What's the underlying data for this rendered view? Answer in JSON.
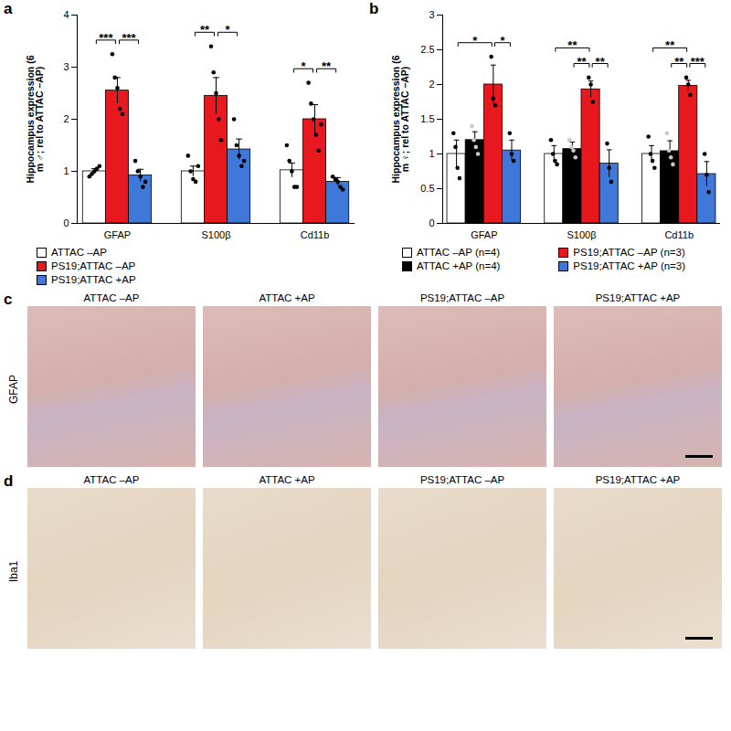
{
  "chart_data": [
    {
      "type": "bar",
      "panel": "a",
      "ylabel": "Hippocampus expression (6 m ♂; rel to ATTAC –AP)",
      "categories": [
        "GFAP",
        "S100β",
        "Cd11b"
      ],
      "series": [
        {
          "name": "ATTAC –AP",
          "color": "#ffffff",
          "values": [
            1.0,
            1.0,
            1.02
          ],
          "errors": [
            0.05,
            0.1,
            0.14
          ],
          "points": [
            [
              0.9,
              0.95,
              1.0,
              1.05,
              1.1
            ],
            [
              1.3,
              1.0,
              0.85,
              0.8,
              1.1
            ],
            [
              1.5,
              1.2,
              1.0,
              0.7,
              0.7
            ]
          ]
        },
        {
          "name": "PS19;ATTAC –AP",
          "color": "#e8191e",
          "values": [
            2.55,
            2.45,
            2.0
          ],
          "errors": [
            0.25,
            0.35,
            0.28
          ],
          "points": [
            [
              3.25,
              2.8,
              2.6,
              2.2,
              2.1
            ],
            [
              3.4,
              2.9,
              2.5,
              2.0,
              1.6
            ],
            [
              2.7,
              2.3,
              2.0,
              1.7,
              1.4,
              1.9
            ]
          ]
        },
        {
          "name": "PS19;ATTAC +AP",
          "color": "#3f78d8",
          "values": [
            0.92,
            1.42,
            0.8
          ],
          "errors": [
            0.12,
            0.2,
            0.08
          ],
          "points": [
            [
              1.2,
              1.0,
              0.9,
              0.7,
              0.8
            ],
            [
              2.0,
              1.5,
              1.3,
              1.1,
              1.2
            ],
            [
              0.9,
              0.85,
              0.8,
              0.7,
              0.65
            ]
          ]
        }
      ],
      "significance": [
        {
          "category": "GFAP",
          "pair": [
            "ATTAC –AP",
            "PS19;ATTAC –AP"
          ],
          "label": "***"
        },
        {
          "category": "GFAP",
          "pair": [
            "PS19;ATTAC –AP",
            "PS19;ATTAC +AP"
          ],
          "label": "***"
        },
        {
          "category": "S100β",
          "pair": [
            "ATTAC –AP",
            "PS19;ATTAC –AP"
          ],
          "label": "**"
        },
        {
          "category": "S100β",
          "pair": [
            "PS19;ATTAC –AP",
            "PS19;ATTAC +AP"
          ],
          "label": "*"
        },
        {
          "category": "Cd11b",
          "pair": [
            "ATTAC –AP",
            "PS19;ATTAC –AP"
          ],
          "label": "*"
        },
        {
          "category": "Cd11b",
          "pair": [
            "PS19;ATTAC –AP",
            "PS19;ATTAC +AP"
          ],
          "label": "**"
        }
      ],
      "ylim": [
        0,
        4
      ],
      "yticks": [
        0,
        1,
        2,
        3,
        4
      ],
      "grid": false
    },
    {
      "type": "bar",
      "panel": "b",
      "ylabel": "Hippocampus expression (6 m ♀; rel to ATTAC –AP)",
      "categories": [
        "GFAP",
        "S100β",
        "Cd11b"
      ],
      "series": [
        {
          "name": "ATTAC –AP (n=4)",
          "color": "#ffffff",
          "values": [
            1.0,
            1.0,
            1.0
          ],
          "errors": [
            0.2,
            0.12,
            0.12
          ],
          "points": [
            [
              1.3,
              1.1,
              0.8,
              0.65
            ],
            [
              1.2,
              1.0,
              0.9,
              0.85
            ],
            [
              1.25,
              1.0,
              0.9,
              0.8
            ]
          ]
        },
        {
          "name": "ATTAC +AP (n=4)",
          "color": "#000000",
          "values": [
            1.2,
            1.07,
            1.04
          ],
          "errors": [
            0.12,
            0.1,
            0.15
          ],
          "points": [
            [
              1.4,
              1.2,
              1.1,
              1.0
            ],
            [
              1.2,
              1.1,
              1.05,
              0.95
            ],
            [
              1.3,
              1.05,
              0.95,
              0.85
            ]
          ]
        },
        {
          "name": "PS19;ATTAC –AP (n=3)",
          "color": "#e8191e",
          "values": [
            2.0,
            1.93,
            1.98
          ],
          "errors": [
            0.28,
            0.12,
            0.08
          ],
          "points": [
            [
              2.4,
              1.8,
              1.7
            ],
            [
              2.1,
              2.0,
              1.75
            ],
            [
              2.1,
              2.0,
              1.85
            ]
          ]
        },
        {
          "name": "PS19;ATTAC +AP (n=3)",
          "color": "#3f78d8",
          "values": [
            1.05,
            0.86,
            0.71
          ],
          "errors": [
            0.15,
            0.2,
            0.18
          ],
          "points": [
            [
              1.3,
              1.0,
              0.9
            ],
            [
              1.15,
              0.8,
              0.6
            ],
            [
              1.0,
              0.7,
              0.45
            ]
          ]
        }
      ],
      "significance": [
        {
          "category": "GFAP",
          "pair": [
            "ATTAC –AP (n=4)",
            "PS19;ATTAC –AP (n=3)"
          ],
          "label": "*"
        },
        {
          "category": "GFAP",
          "pair": [
            "PS19;ATTAC –AP (n=3)",
            "PS19;ATTAC +AP (n=3)"
          ],
          "label": "*"
        },
        {
          "category": "S100β",
          "pair": [
            "ATTAC –AP (n=4)",
            "PS19;ATTAC –AP (n=3)"
          ],
          "label": "**"
        },
        {
          "category": "S100β",
          "pair": [
            "ATTAC +AP (n=4)",
            "PS19;ATTAC –AP (n=3)"
          ],
          "label": "**"
        },
        {
          "category": "S100β",
          "pair": [
            "PS19;ATTAC –AP (n=3)",
            "PS19;ATTAC +AP (n=3)"
          ],
          "label": "**"
        },
        {
          "category": "Cd11b",
          "pair": [
            "ATTAC –AP (n=4)",
            "PS19;ATTAC –AP (n=3)"
          ],
          "label": "**"
        },
        {
          "category": "Cd11b",
          "pair": [
            "ATTAC +AP (n=4)",
            "PS19;ATTAC –AP (n=3)"
          ],
          "label": "**"
        },
        {
          "category": "Cd11b",
          "pair": [
            "PS19;ATTAC –AP (n=3)",
            "PS19;ATTAC +AP (n=3)"
          ],
          "label": "***"
        }
      ],
      "ylim": [
        0,
        3
      ],
      "yticks": [
        0,
        0.5,
        1,
        1.5,
        2,
        2.5,
        3
      ],
      "grid": false
    }
  ],
  "image_panels": [
    {
      "panel": "c",
      "stain": "GFAP",
      "columns": [
        "ATTAC –AP",
        "ATTAC +AP",
        "PS19;ATTAC –AP",
        "PS19;ATTAC +AP"
      ]
    },
    {
      "panel": "d",
      "stain": "Iba1",
      "columns": [
        "ATTAC –AP",
        "ATTAC +AP",
        "PS19;ATTAC –AP",
        "PS19;ATTAC +AP"
      ]
    }
  ]
}
